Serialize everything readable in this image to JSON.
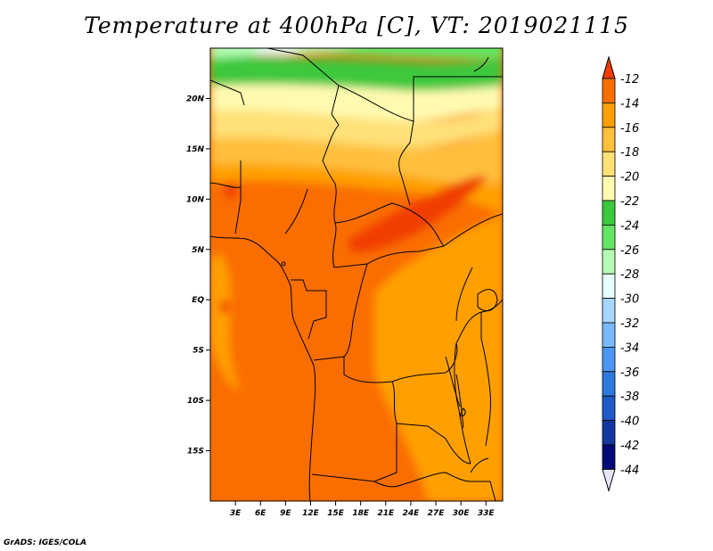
{
  "title": "Temperature at 400hPa [C], VT: 2019021115",
  "credit": "GrADS: IGES/COLA",
  "map": {
    "lon_range": [
      0,
      35
    ],
    "lat_range": [
      -20,
      25
    ],
    "lat_ticks": [
      {
        "lat": 20,
        "label": "20N"
      },
      {
        "lat": 15,
        "label": "15N"
      },
      {
        "lat": 10,
        "label": "10N"
      },
      {
        "lat": 5,
        "label": "5N"
      },
      {
        "lat": 0,
        "label": "EQ"
      },
      {
        "lat": -5,
        "label": "5S"
      },
      {
        "lat": -10,
        "label": "10S"
      },
      {
        "lat": -15,
        "label": "15S"
      }
    ],
    "lon_ticks": [
      {
        "lon": 3,
        "label": "3E"
      },
      {
        "lon": 6,
        "label": "6E"
      },
      {
        "lon": 9,
        "label": "9E"
      },
      {
        "lon": 12,
        "label": "12E"
      },
      {
        "lon": 15,
        "label": "15E"
      },
      {
        "lon": 18,
        "label": "18E"
      },
      {
        "lon": 21,
        "label": "21E"
      },
      {
        "lon": 24,
        "label": "24E"
      },
      {
        "lon": 27,
        "label": "27E"
      },
      {
        "lon": 30,
        "label": "30E"
      },
      {
        "lon": 33,
        "label": "33E"
      }
    ]
  },
  "colorbar": {
    "labels": [
      "-12",
      "-14",
      "-16",
      "-18",
      "-20",
      "-22",
      "-24",
      "-26",
      "-28",
      "-30",
      "-32",
      "-34",
      "-36",
      "-38",
      "-40",
      "-42",
      "-44"
    ],
    "colors": [
      "#f03c00",
      "#fa6e00",
      "#ffa000",
      "#ffc03c",
      "#ffe178",
      "#fffab0",
      "#3cc83c",
      "#64e664",
      "#b4fab4",
      "#e6ffff",
      "#a6d6ff",
      "#78b9fa",
      "#4b96f0",
      "#2d78dc",
      "#1e5ac8",
      "#1438a0",
      "#000a78"
    ],
    "top_arrow_color": "#f03c00",
    "bottom_arrow_color": "#e6e6fa"
  }
}
